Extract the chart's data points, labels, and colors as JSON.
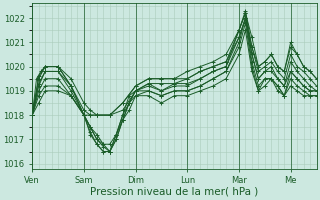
{
  "bg_color": "#cce8e0",
  "grid_color": "#aaccbb",
  "line_color": "#1a5c28",
  "xlabel": "Pression niveau de la mer( hPa )",
  "xlabel_color": "#1a5c28",
  "tick_color": "#1a5c28",
  "ylim": [
    1015.8,
    1022.6
  ],
  "yticks": [
    1016,
    1017,
    1018,
    1019,
    1020,
    1021,
    1022
  ],
  "xmax": 264,
  "day_positions": [
    0,
    48,
    96,
    144,
    192,
    240,
    264
  ],
  "day_labels": [
    "Ven",
    "Sam",
    "Dim",
    "Lun",
    "Mar",
    "Me"
  ],
  "series": [
    [
      0,
      1018.0,
      6,
      1019.6,
      12,
      1020.0,
      24,
      1020.0,
      36,
      1019.5,
      48,
      1018.5,
      54,
      1018.2,
      60,
      1018.0,
      72,
      1018.0,
      84,
      1018.5,
      96,
      1019.2,
      108,
      1019.5,
      120,
      1019.5,
      132,
      1019.5,
      144,
      1019.8,
      156,
      1020.0,
      168,
      1020.2,
      180,
      1020.5,
      192,
      1021.5,
      198,
      1022.2,
      204,
      1021.2,
      210,
      1020.0,
      216,
      1020.2,
      222,
      1020.5,
      228,
      1020.0,
      234,
      1019.8,
      240,
      1021.0,
      246,
      1020.5,
      252,
      1020.0,
      258,
      1019.8,
      264,
      1019.5
    ],
    [
      0,
      1018.0,
      6,
      1019.3,
      12,
      1019.8,
      24,
      1019.8,
      36,
      1019.2,
      48,
      1018.2,
      54,
      1018.0,
      60,
      1018.0,
      72,
      1018.0,
      84,
      1018.2,
      96,
      1019.0,
      108,
      1019.3,
      120,
      1019.3,
      132,
      1019.3,
      144,
      1019.5,
      156,
      1019.8,
      168,
      1020.0,
      180,
      1020.2,
      192,
      1021.2,
      198,
      1022.0,
      204,
      1020.8,
      210,
      1019.8,
      216,
      1020.0,
      222,
      1020.2,
      228,
      1019.8,
      234,
      1019.5,
      240,
      1020.5,
      246,
      1020.0,
      252,
      1019.8,
      258,
      1019.5,
      264,
      1019.2
    ],
    [
      0,
      1018.0,
      6,
      1019.5,
      12,
      1020.0,
      24,
      1020.0,
      36,
      1019.2,
      48,
      1018.0,
      54,
      1017.5,
      60,
      1017.0,
      66,
      1016.8,
      72,
      1016.5,
      78,
      1017.2,
      84,
      1018.0,
      90,
      1018.8,
      96,
      1019.0,
      108,
      1019.3,
      120,
      1019.0,
      132,
      1019.3,
      144,
      1019.3,
      156,
      1019.5,
      168,
      1019.8,
      180,
      1020.0,
      192,
      1021.2,
      198,
      1022.0,
      204,
      1020.5,
      210,
      1019.5,
      216,
      1019.8,
      222,
      1019.8,
      228,
      1019.5,
      234,
      1019.2,
      240,
      1019.8,
      246,
      1019.5,
      252,
      1019.2,
      258,
      1019.0,
      264,
      1019.0
    ],
    [
      0,
      1018.0,
      6,
      1019.0,
      12,
      1019.5,
      24,
      1019.5,
      36,
      1018.8,
      48,
      1018.0,
      54,
      1017.2,
      60,
      1016.8,
      66,
      1016.5,
      72,
      1016.5,
      78,
      1017.0,
      84,
      1017.8,
      90,
      1018.5,
      96,
      1018.8,
      108,
      1019.0,
      120,
      1018.8,
      132,
      1019.0,
      144,
      1019.0,
      156,
      1019.2,
      168,
      1019.5,
      180,
      1019.8,
      192,
      1020.8,
      198,
      1021.8,
      204,
      1020.0,
      210,
      1019.0,
      216,
      1019.5,
      222,
      1019.5,
      228,
      1019.2,
      234,
      1018.8,
      240,
      1019.2,
      246,
      1019.0,
      252,
      1018.8,
      258,
      1018.8,
      264,
      1018.8
    ],
    [
      0,
      1018.0,
      6,
      1019.2,
      12,
      1019.8,
      24,
      1019.8,
      36,
      1019.0,
      48,
      1018.0,
      54,
      1017.3,
      60,
      1016.8,
      66,
      1016.5,
      72,
      1016.5,
      78,
      1017.2,
      84,
      1017.8,
      90,
      1018.5,
      96,
      1019.0,
      108,
      1019.2,
      120,
      1019.0,
      132,
      1019.2,
      144,
      1019.2,
      156,
      1019.5,
      168,
      1019.8,
      180,
      1020.0,
      192,
      1021.5,
      198,
      1022.2,
      204,
      1020.5,
      210,
      1019.5,
      216,
      1019.8,
      222,
      1020.0,
      228,
      1019.5,
      234,
      1019.2,
      240,
      1020.2,
      246,
      1019.8,
      252,
      1019.5,
      258,
      1019.2,
      264,
      1019.0
    ],
    [
      0,
      1018.0,
      6,
      1018.5,
      12,
      1019.0,
      24,
      1019.0,
      36,
      1018.8,
      48,
      1018.0,
      54,
      1017.5,
      60,
      1017.0,
      66,
      1016.7,
      72,
      1016.5,
      78,
      1017.0,
      84,
      1017.8,
      90,
      1018.2,
      96,
      1018.8,
      108,
      1018.8,
      120,
      1018.5,
      132,
      1018.8,
      144,
      1018.8,
      156,
      1019.0,
      168,
      1019.2,
      180,
      1019.5,
      192,
      1020.5,
      198,
      1021.5,
      204,
      1019.8,
      210,
      1019.0,
      216,
      1019.2,
      222,
      1019.5,
      228,
      1019.0,
      234,
      1018.8,
      240,
      1019.5,
      246,
      1019.2,
      252,
      1019.0,
      258,
      1018.8,
      264,
      1018.8
    ],
    [
      0,
      1018.0,
      6,
      1018.8,
      12,
      1019.2,
      24,
      1019.2,
      36,
      1018.8,
      48,
      1018.0,
      54,
      1017.5,
      60,
      1017.2,
      66,
      1016.8,
      72,
      1016.8,
      78,
      1017.2,
      84,
      1018.0,
      90,
      1018.5,
      96,
      1019.0,
      108,
      1019.0,
      120,
      1018.8,
      132,
      1019.0,
      144,
      1019.0,
      156,
      1019.2,
      168,
      1019.5,
      180,
      1019.8,
      192,
      1021.0,
      198,
      1022.0,
      204,
      1020.2,
      210,
      1019.2,
      216,
      1019.5,
      222,
      1019.5,
      228,
      1019.2,
      234,
      1018.8,
      240,
      1019.8,
      246,
      1019.5,
      252,
      1019.2,
      258,
      1019.0,
      264,
      1019.0
    ],
    [
      0,
      1018.0,
      4,
      1019.5,
      8,
      1019.8,
      12,
      1020.0,
      24,
      1020.0,
      36,
      1019.2,
      48,
      1018.0,
      54,
      1018.0,
      60,
      1018.0,
      72,
      1018.0,
      84,
      1018.5,
      96,
      1019.2,
      108,
      1019.5,
      120,
      1019.5,
      132,
      1019.5,
      144,
      1019.5,
      156,
      1019.8,
      168,
      1020.0,
      180,
      1020.2,
      192,
      1021.5,
      198,
      1022.3,
      204,
      1020.8,
      210,
      1020.0,
      216,
      1020.2,
      222,
      1020.5,
      228,
      1020.0,
      234,
      1019.8,
      240,
      1020.8,
      246,
      1020.5,
      252,
      1020.0,
      258,
      1019.8,
      264,
      1019.5
    ]
  ]
}
